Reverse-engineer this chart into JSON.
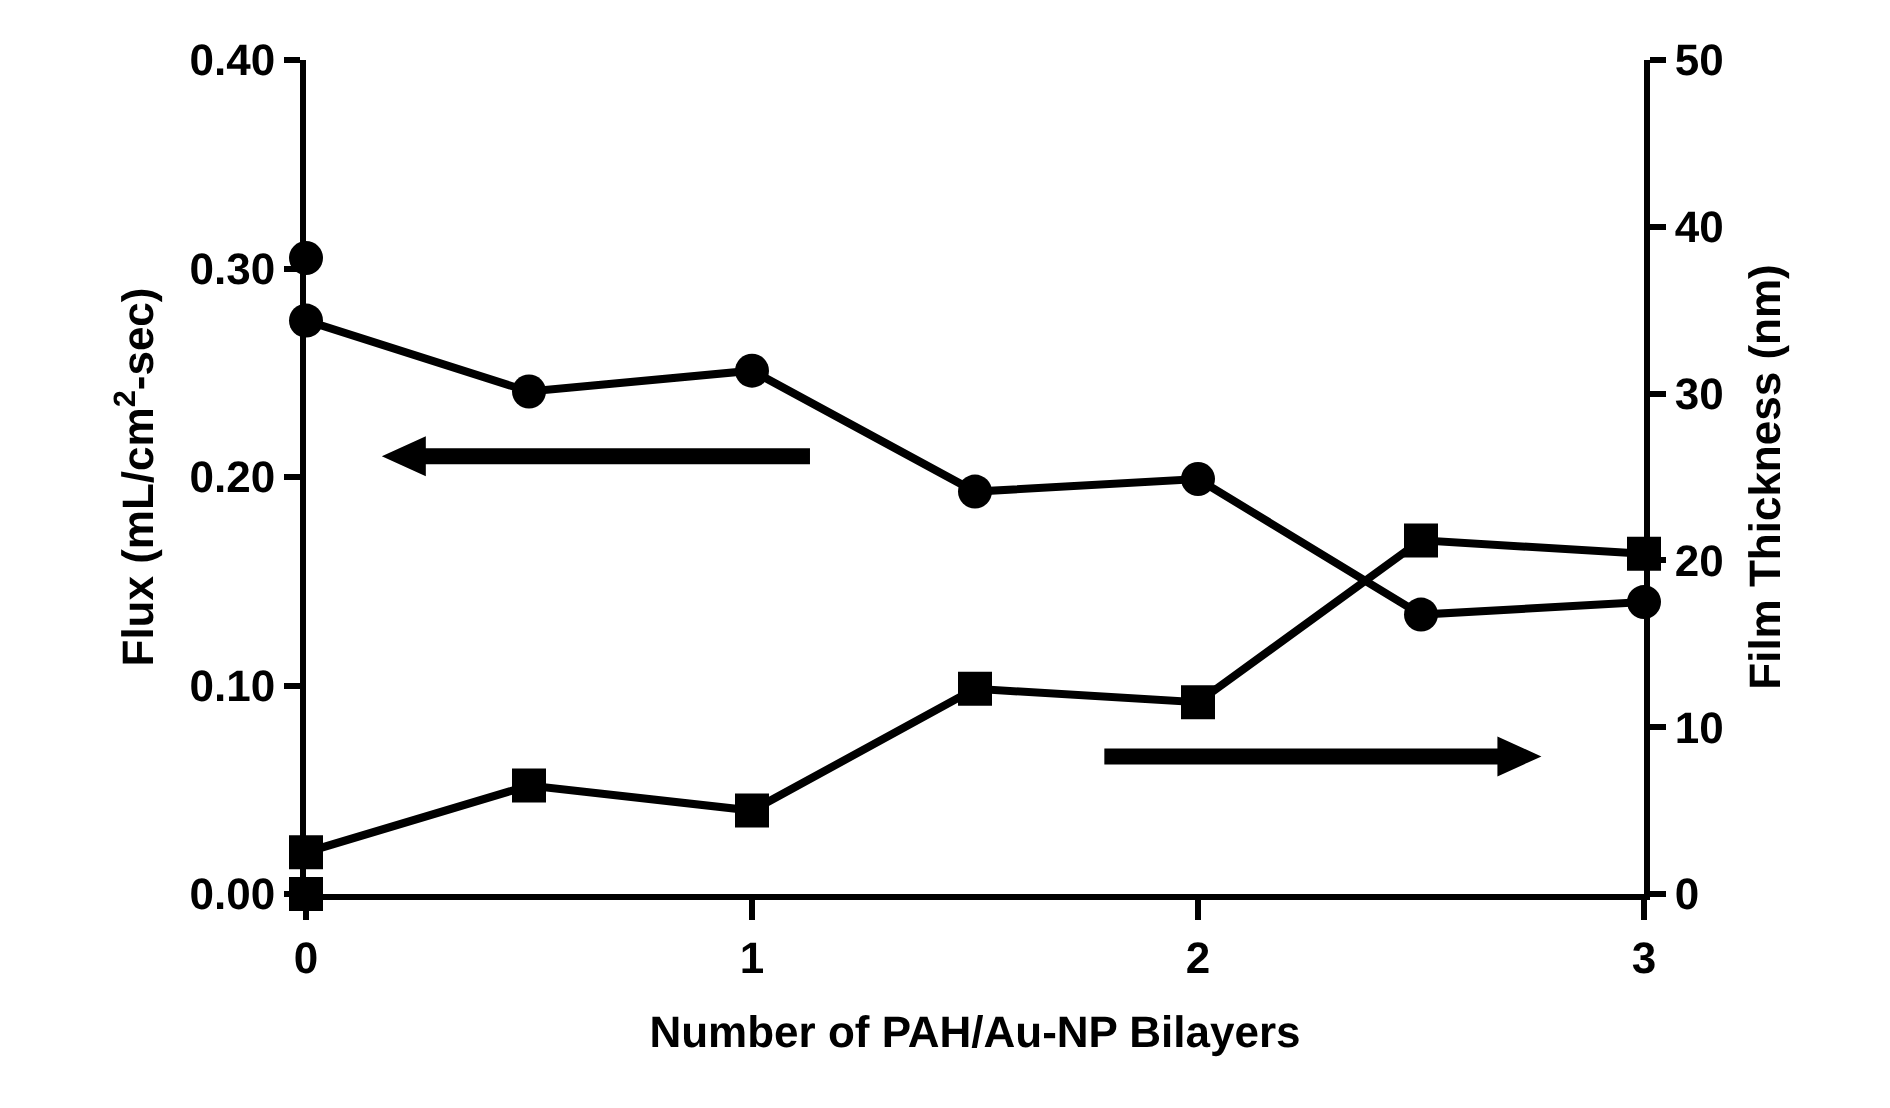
{
  "chart_data": {
    "type": "line",
    "xlabel": "Number of PAH/Au-NP Bilayers",
    "ylabel": "Flux (mL/cm$^{2}$-sec)",
    "y2label": "Film Thickness (nm)",
    "x": [
      0,
      0.5,
      1,
      1.5,
      2,
      2.5,
      3
    ],
    "xlim": [
      0,
      3
    ],
    "xticks": [
      0,
      1,
      2,
      3
    ],
    "ylim": [
      0,
      0.4
    ],
    "yticks": [
      {
        "value": 0,
        "label": "0.00"
      },
      {
        "value": 0.1,
        "label": "0.10"
      },
      {
        "value": 0.2,
        "label": "0.20"
      },
      {
        "value": 0.3,
        "label": "0.30"
      },
      {
        "value": 0.4,
        "label": "0.40"
      }
    ],
    "y2lim": [
      0,
      50
    ],
    "y2ticks": [
      0,
      10,
      20,
      30,
      40,
      50
    ],
    "grid": false,
    "line_style": "solid",
    "series": [
      {
        "color": "#000000",
        "marker": "circle",
        "values": [
          0.275,
          0.241,
          0.251,
          0.193,
          0.199,
          0.134,
          0.14
        ]
      },
      {
        "color": "#000000",
        "marker": "square",
        "axis": "y2",
        "values": [
          2.5,
          6.5,
          5.0,
          12.3,
          11.5,
          21.2,
          20.4
        ]
      },
      {
        "type": "scatter",
        "color": "#000000",
        "marker": "circle",
        "x": [
          0
        ],
        "values": [
          0.305
        ]
      },
      {
        "type": "scatter",
        "color": "#000000",
        "marker": "square",
        "axis": "y2",
        "x": [
          0
        ],
        "values": [
          0
        ]
      }
    ]
  }
}
